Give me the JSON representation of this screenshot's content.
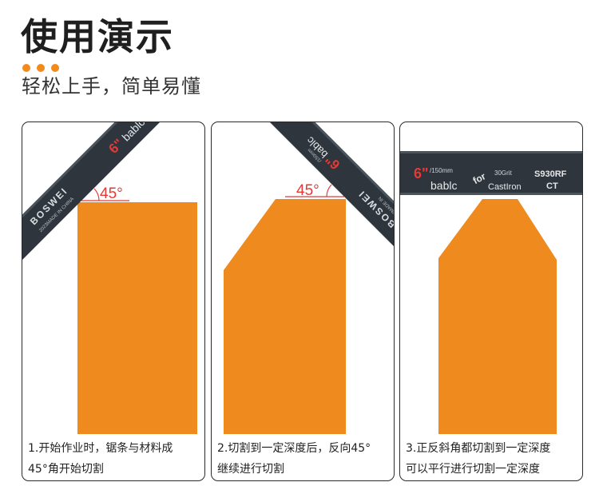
{
  "header": {
    "title": "使用演示",
    "subtitle": "轻松上手，简单易懂"
  },
  "colors": {
    "accent": "#f28a1e",
    "block": "#ef8a1f",
    "blade": "#2e353c",
    "angle_line": "#e53935",
    "border": "#2a2a2a"
  },
  "panels": [
    {
      "angle_label": "45°",
      "blade_text": {
        "brand": "BOSWEI",
        "made": "2023MADE IN CHINA",
        "size": "6\"",
        "word": "bablc"
      },
      "caption": [
        "1.开始作业时，锯条与材料成",
        "45°角开始切割"
      ]
    },
    {
      "angle_label": "45°",
      "blade_text": {
        "size": "6\"",
        "spec": "/150mm",
        "word": "bablc",
        "brand": "BOSWEI",
        "made": "2023MADE IN"
      },
      "caption": [
        "2.切割到一定深度后，反向45°",
        "继续进行切割"
      ]
    },
    {
      "blade_text": {
        "size": "6\"",
        "spec": "/150mm",
        "word": "bablc",
        "for": "for",
        "grit": "30Grit",
        "material": "CastIron",
        "code": "S930RF",
        "ct": "CT"
      },
      "caption": [
        "3.正反斜角都切割到一定深度",
        "可以平行进行切割一定深度"
      ]
    }
  ]
}
